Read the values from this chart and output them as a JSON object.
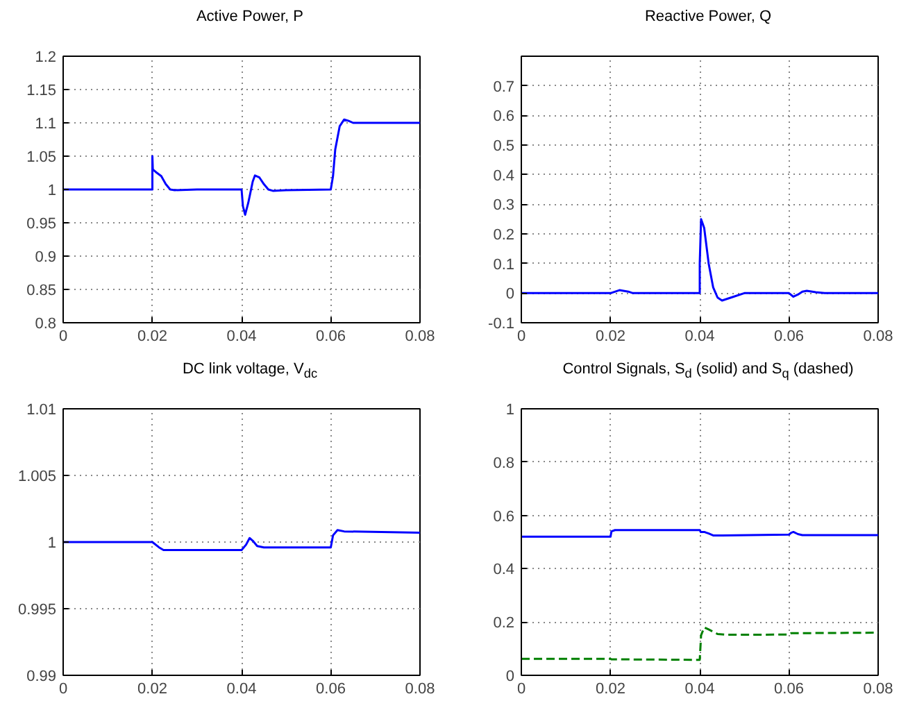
{
  "chart_data": [
    {
      "type": "line",
      "title": "Active Power, P",
      "xlim": [
        0,
        0.08
      ],
      "xticks": [
        0,
        0.02,
        0.04,
        0.06,
        0.08
      ],
      "ylim": [
        0.8,
        1.2
      ],
      "yticks": [
        0.8,
        0.85,
        0.9,
        0.95,
        1,
        1.05,
        1.1,
        1.15,
        1.2
      ],
      "grid": true,
      "x": [
        0,
        0.02,
        0.02,
        0.0201,
        0.021,
        0.022,
        0.023,
        0.024,
        0.025,
        0.03,
        0.04,
        0.0403,
        0.0408,
        0.0415,
        0.0425,
        0.043,
        0.044,
        0.045,
        0.046,
        0.047,
        0.05,
        0.06,
        0.0605,
        0.061,
        0.062,
        0.063,
        0.064,
        0.065,
        0.08
      ],
      "series": [
        {
          "color": "#0000ff",
          "line_style": "solid",
          "values": [
            1,
            1,
            1.05,
            1.03,
            1.025,
            1.02,
            1.008,
            1.0,
            0.999,
            1,
            1,
            0.975,
            0.962,
            0.98,
            1.012,
            1.021,
            1.018,
            1.008,
            1.0,
            0.998,
            0.999,
            1,
            1.02,
            1.06,
            1.095,
            1.105,
            1.103,
            1.1,
            1.1
          ]
        }
      ]
    },
    {
      "type": "line",
      "title": "Reactive Power, Q",
      "xlim": [
        0,
        0.08
      ],
      "xticks": [
        0,
        0.02,
        0.04,
        0.06,
        0.08
      ],
      "ylim": [
        -0.1,
        0.8
      ],
      "yticks": [
        -0.1,
        0,
        0.1,
        0.2,
        0.3,
        0.4,
        0.5,
        0.6,
        0.7
      ],
      "grid": true,
      "x": [
        0,
        0.02,
        0.022,
        0.024,
        0.025,
        0.04,
        0.04,
        0.0403,
        0.041,
        0.042,
        0.043,
        0.044,
        0.045,
        0.047,
        0.05,
        0.06,
        0.061,
        0.062,
        0.063,
        0.064,
        0.066,
        0.068,
        0.08
      ],
      "series": [
        {
          "color": "#0000ff",
          "line_style": "solid",
          "values": [
            0,
            0,
            0.01,
            0.005,
            0,
            0,
            0.1,
            0.25,
            0.22,
            0.1,
            0.02,
            -0.015,
            -0.025,
            -0.015,
            0,
            0,
            -0.012,
            -0.005,
            0.005,
            0.008,
            0.003,
            0,
            0
          ]
        }
      ]
    },
    {
      "type": "line",
      "title": "DC link voltage, V$_{dc}$",
      "xlim": [
        0,
        0.08
      ],
      "xticks": [
        0,
        0.02,
        0.04,
        0.06,
        0.08
      ],
      "ylim": [
        0.99,
        1.01
      ],
      "yticks": [
        0.99,
        0.995,
        1,
        1.005,
        1.01
      ],
      "grid": true,
      "x": [
        0,
        0.02,
        0.0215,
        0.0225,
        0.03,
        0.04,
        0.041,
        0.0418,
        0.0425,
        0.0435,
        0.045,
        0.05,
        0.06,
        0.0605,
        0.0615,
        0.063,
        0.08
      ],
      "series": [
        {
          "color": "#0000ff",
          "line_style": "solid",
          "values": [
            1,
            1,
            0.9996,
            0.9994,
            0.9994,
            0.9994,
            0.9998,
            1.0003,
            1.0001,
            0.9997,
            0.9996,
            0.9996,
            0.9996,
            1.0005,
            1.0009,
            1.0008,
            1.0007
          ]
        }
      ]
    },
    {
      "type": "line",
      "title": "Control Signals, S$_{d}$ (solid) and S$_{q}$ (dashed)",
      "xlim": [
        0,
        0.08
      ],
      "xticks": [
        0,
        0.02,
        0.04,
        0.06,
        0.08
      ],
      "ylim": [
        0,
        1
      ],
      "yticks": [
        0,
        0.2,
        0.4,
        0.6,
        0.8,
        1
      ],
      "grid": true,
      "series": [
        {
          "color": "#0000ff",
          "line_style": "solid",
          "x": [
            0,
            0.02,
            0.0202,
            0.021,
            0.04,
            0.0402,
            0.041,
            0.042,
            0.043,
            0.045,
            0.06,
            0.0605,
            0.061,
            0.062,
            0.063,
            0.08
          ],
          "values": [
            0.52,
            0.52,
            0.54,
            0.545,
            0.545,
            0.538,
            0.538,
            0.532,
            0.525,
            0.525,
            0.528,
            0.535,
            0.538,
            0.53,
            0.526,
            0.526
          ]
        },
        {
          "color": "#008000",
          "line_style": "dashed",
          "x": [
            0,
            0.02,
            0.0202,
            0.04,
            0.0403,
            0.041,
            0.042,
            0.044,
            0.046,
            0.06,
            0.0605,
            0.08
          ],
          "values": [
            0.062,
            0.062,
            0.06,
            0.058,
            0.15,
            0.18,
            0.172,
            0.155,
            0.152,
            0.153,
            0.158,
            0.16
          ]
        }
      ]
    }
  ]
}
